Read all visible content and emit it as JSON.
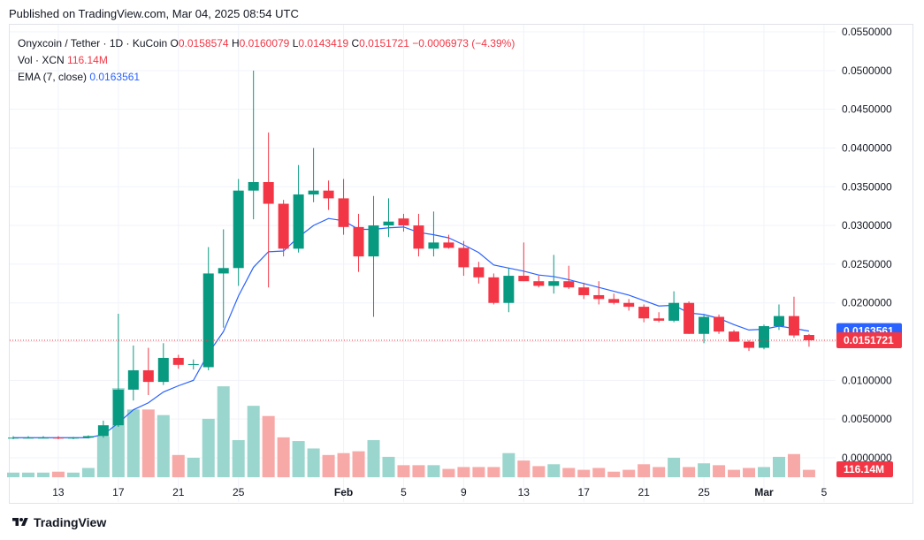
{
  "published": "Published on TradingView.com, Mar 04, 2025 08:54 UTC",
  "legend": {
    "symbol": "Onyxcoin / Tether · 1D · KuCoin",
    "o_label": "O",
    "o_value": "0.0158574",
    "h_label": "H",
    "h_value": "0.0160079",
    "l_label": "L",
    "l_value": "0.0143419",
    "c_label": "C",
    "c_value": "0.0151721",
    "change": "−0.0006973 (−4.39%)",
    "vol_label": "Vol · XCN",
    "vol_value": "116.14M",
    "ema_label": "EMA (7, close)",
    "ema_value": "0.0163561"
  },
  "footer": {
    "brand": "TradingView"
  },
  "colors": {
    "up": "#089981",
    "down": "#f23645",
    "up_vol": "#9ad6cd",
    "down_vol": "#f7a9a7",
    "ema": "#2962ff",
    "grid": "#f0f3fa"
  },
  "chart_data": {
    "type": "candlestick",
    "ylim": [
      0.0,
      0.0555
    ],
    "yticks": [
      "0.0550000",
      "0.0500000",
      "0.0450000",
      "0.0400000",
      "0.0350000",
      "0.0300000",
      "0.0250000",
      "0.0200000",
      "0.0150000",
      "0.0100000",
      "0.0050000",
      "0.0000000"
    ],
    "xticks": [
      {
        "label": "13",
        "i": 3,
        "bold": false
      },
      {
        "label": "17",
        "i": 7,
        "bold": false
      },
      {
        "label": "21",
        "i": 11,
        "bold": false
      },
      {
        "label": "25",
        "i": 15,
        "bold": false
      },
      {
        "label": "Feb",
        "i": 22,
        "bold": true
      },
      {
        "label": "5",
        "i": 26,
        "bold": false
      },
      {
        "label": "9",
        "i": 30,
        "bold": false
      },
      {
        "label": "13",
        "i": 34,
        "bold": false
      },
      {
        "label": "17",
        "i": 38,
        "bold": false
      },
      {
        "label": "21",
        "i": 42,
        "bold": false
      },
      {
        "label": "25",
        "i": 46,
        "bold": false
      },
      {
        "label": "Mar",
        "i": 50,
        "bold": true
      },
      {
        "label": "5",
        "i": 54,
        "bold": false
      }
    ],
    "last_price_label": "0.0151721",
    "ema_label": "0.0163561",
    "volume_label": "116.14M",
    "candles": [
      {
        "o": 0.0026,
        "h": 0.0028,
        "l": 0.0024,
        "c": 0.0026,
        "v": 5
      },
      {
        "o": 0.0026,
        "h": 0.0028,
        "l": 0.0025,
        "c": 0.0026,
        "v": 5
      },
      {
        "o": 0.0026,
        "h": 0.0028,
        "l": 0.0025,
        "c": 0.0026,
        "v": 5
      },
      {
        "o": 0.0026,
        "h": 0.0028,
        "l": 0.0024,
        "c": 0.0025,
        "v": 6
      },
      {
        "o": 0.0025,
        "h": 0.0027,
        "l": 0.0024,
        "c": 0.0026,
        "v": 5
      },
      {
        "o": 0.0026,
        "h": 0.0029,
        "l": 0.0025,
        "c": 0.0028,
        "v": 10
      },
      {
        "o": 0.0028,
        "h": 0.0048,
        "l": 0.0026,
        "c": 0.0042,
        "v": 44
      },
      {
        "o": 0.0042,
        "h": 0.0186,
        "l": 0.004,
        "c": 0.0088,
        "v": 96
      },
      {
        "o": 0.0088,
        "h": 0.0145,
        "l": 0.0074,
        "c": 0.0113,
        "v": 73
      },
      {
        "o": 0.0113,
        "h": 0.0142,
        "l": 0.0081,
        "c": 0.0098,
        "v": 73
      },
      {
        "o": 0.0098,
        "h": 0.0148,
        "l": 0.0094,
        "c": 0.0129,
        "v": 67
      },
      {
        "o": 0.0129,
        "h": 0.0133,
        "l": 0.0115,
        "c": 0.012,
        "v": 24
      },
      {
        "o": 0.012,
        "h": 0.0127,
        "l": 0.0114,
        "c": 0.0121,
        "v": 21
      },
      {
        "o": 0.0117,
        "h": 0.0272,
        "l": 0.0113,
        "c": 0.0238,
        "v": 63
      },
      {
        "o": 0.0238,
        "h": 0.0295,
        "l": 0.0168,
        "c": 0.0245,
        "v": 98
      },
      {
        "o": 0.0245,
        "h": 0.036,
        "l": 0.0222,
        "c": 0.0345,
        "v": 40
      },
      {
        "o": 0.0345,
        "h": 0.05,
        "l": 0.0308,
        "c": 0.0356,
        "v": 77
      },
      {
        "o": 0.0356,
        "h": 0.042,
        "l": 0.022,
        "c": 0.0328,
        "v": 66
      },
      {
        "o": 0.0328,
        "h": 0.0333,
        "l": 0.026,
        "c": 0.027,
        "v": 43
      },
      {
        "o": 0.027,
        "h": 0.0378,
        "l": 0.0265,
        "c": 0.034,
        "v": 39
      },
      {
        "o": 0.034,
        "h": 0.04,
        "l": 0.033,
        "c": 0.0345,
        "v": 31
      },
      {
        "o": 0.0345,
        "h": 0.0358,
        "l": 0.032,
        "c": 0.0335,
        "v": 24
      },
      {
        "o": 0.0335,
        "h": 0.036,
        "l": 0.0288,
        "c": 0.0298,
        "v": 26
      },
      {
        "o": 0.0298,
        "h": 0.0315,
        "l": 0.024,
        "c": 0.026,
        "v": 28
      },
      {
        "o": 0.026,
        "h": 0.0338,
        "l": 0.0182,
        "c": 0.03,
        "v": 40
      },
      {
        "o": 0.03,
        "h": 0.0335,
        "l": 0.0285,
        "c": 0.0305,
        "v": 22
      },
      {
        "o": 0.0309,
        "h": 0.0315,
        "l": 0.0292,
        "c": 0.03,
        "v": 13
      },
      {
        "o": 0.03,
        "h": 0.0315,
        "l": 0.026,
        "c": 0.027,
        "v": 13
      },
      {
        "o": 0.027,
        "h": 0.0318,
        "l": 0.026,
        "c": 0.0278,
        "v": 13
      },
      {
        "o": 0.0278,
        "h": 0.0288,
        "l": 0.027,
        "c": 0.0271,
        "v": 9
      },
      {
        "o": 0.0271,
        "h": 0.028,
        "l": 0.0235,
        "c": 0.0246,
        "v": 11
      },
      {
        "o": 0.0246,
        "h": 0.0253,
        "l": 0.0225,
        "c": 0.0233,
        "v": 11
      },
      {
        "o": 0.0233,
        "h": 0.0238,
        "l": 0.0198,
        "c": 0.02,
        "v": 11
      },
      {
        "o": 0.02,
        "h": 0.0245,
        "l": 0.0188,
        "c": 0.0235,
        "v": 26
      },
      {
        "o": 0.0235,
        "h": 0.0278,
        "l": 0.0228,
        "c": 0.0228,
        "v": 18
      },
      {
        "o": 0.0228,
        "h": 0.0235,
        "l": 0.022,
        "c": 0.0222,
        "v": 12
      },
      {
        "o": 0.0222,
        "h": 0.0262,
        "l": 0.0212,
        "c": 0.0228,
        "v": 14
      },
      {
        "o": 0.0228,
        "h": 0.0248,
        "l": 0.0218,
        "c": 0.022,
        "v": 10
      },
      {
        "o": 0.022,
        "h": 0.0226,
        "l": 0.0205,
        "c": 0.021,
        "v": 8
      },
      {
        "o": 0.021,
        "h": 0.0228,
        "l": 0.0198,
        "c": 0.0205,
        "v": 10
      },
      {
        "o": 0.0205,
        "h": 0.0212,
        "l": 0.0198,
        "c": 0.02,
        "v": 6
      },
      {
        "o": 0.02,
        "h": 0.0205,
        "l": 0.019,
        "c": 0.0195,
        "v": 8
      },
      {
        "o": 0.0195,
        "h": 0.0198,
        "l": 0.0175,
        "c": 0.018,
        "v": 14
      },
      {
        "o": 0.018,
        "h": 0.0188,
        "l": 0.0175,
        "c": 0.0177,
        "v": 11
      },
      {
        "o": 0.0177,
        "h": 0.0215,
        "l": 0.0175,
        "c": 0.02,
        "v": 21
      },
      {
        "o": 0.02,
        "h": 0.0202,
        "l": 0.016,
        "c": 0.016,
        "v": 11
      },
      {
        "o": 0.016,
        "h": 0.0185,
        "l": 0.0148,
        "c": 0.0182,
        "v": 15
      },
      {
        "o": 0.0182,
        "h": 0.0185,
        "l": 0.016,
        "c": 0.0163,
        "v": 13
      },
      {
        "o": 0.0163,
        "h": 0.0165,
        "l": 0.015,
        "c": 0.015,
        "v": 8
      },
      {
        "o": 0.015,
        "h": 0.0152,
        "l": 0.0138,
        "c": 0.0142,
        "v": 10
      },
      {
        "o": 0.0142,
        "h": 0.0172,
        "l": 0.014,
        "c": 0.017,
        "v": 11
      },
      {
        "o": 0.017,
        "h": 0.0198,
        "l": 0.0165,
        "c": 0.0183,
        "v": 22
      },
      {
        "o": 0.0183,
        "h": 0.0208,
        "l": 0.0155,
        "c": 0.0158,
        "v": 25
      },
      {
        "o": 0.01586,
        "h": 0.016,
        "l": 0.01434,
        "c": 0.01517,
        "v": 8
      }
    ],
    "ema": [
      0.0026,
      0.0026,
      0.0026,
      0.0026,
      0.0026,
      0.0026,
      0.003,
      0.0045,
      0.0062,
      0.0071,
      0.0085,
      0.0093,
      0.01,
      0.0135,
      0.0163,
      0.0209,
      0.0246,
      0.0266,
      0.0267,
      0.0285,
      0.03,
      0.0309,
      0.0306,
      0.0295,
      0.0295,
      0.0297,
      0.0298,
      0.0291,
      0.0288,
      0.0284,
      0.0275,
      0.0265,
      0.0249,
      0.0245,
      0.0241,
      0.0236,
      0.0234,
      0.023,
      0.0225,
      0.022,
      0.0215,
      0.021,
      0.0203,
      0.0196,
      0.0197,
      0.0187,
      0.0185,
      0.018,
      0.0172,
      0.0165,
      0.0166,
      0.017,
      0.0167,
      0.01636
    ]
  }
}
